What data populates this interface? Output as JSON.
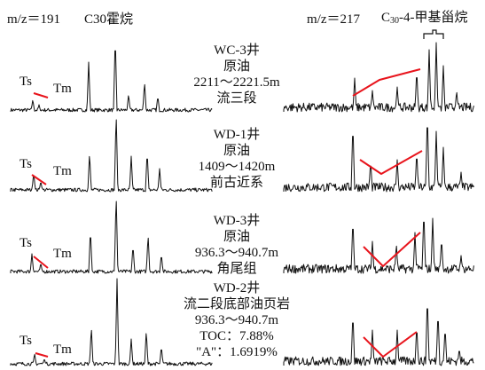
{
  "header": {
    "left_title": "m/z＝191",
    "left_compound": "C30霍烷",
    "right_title": "m/z＝217",
    "right_compound_prefix": "C",
    "right_compound_sub": "30",
    "right_compound_suffix": "-4-甲基甾烷"
  },
  "colors": {
    "trace": "#111111",
    "marker": "#e8141c"
  },
  "peak_labels": {
    "ts": "Ts",
    "tm": "Tm"
  },
  "samples": [
    {
      "well": "WC-3井",
      "type": "原油",
      "depth": "2211～2221.5m",
      "formation": "流三段"
    },
    {
      "well": "WD-1井",
      "type": "原油",
      "depth": "1409～1420m",
      "formation": "前古近系"
    },
    {
      "well": "WD-3井",
      "type": "原油",
      "depth": "936.3～940.7m",
      "formation": "角尾组"
    },
    {
      "well": "WD-2井",
      "type": "流二段底部油页岩",
      "depth": "936.3～940.7m",
      "toc": "TOC：7.88%",
      "a": "\"A\"：1.6919%"
    }
  ]
}
